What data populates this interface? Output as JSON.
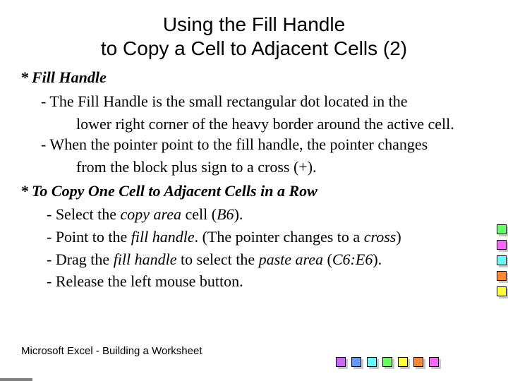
{
  "title": {
    "line1": "Using the Fill Handle",
    "line2": "to Copy a Cell to Adjacent Cells (2)"
  },
  "content": {
    "topic1": {
      "bullet": "*",
      "head": "Fill Handle",
      "sub1a": "- The Fill Handle is the small rectangular dot located in the",
      "sub1b": "lower right corner of the heavy border around the active cell.",
      "sub2a": "- When the pointer point to the fill handle, the pointer changes",
      "sub2b": "from the block plus sign to a cross (+)."
    },
    "topic2": {
      "bullet": "*",
      "head": "To Copy One Cell to Adjacent Cells in a Row",
      "s1_pre": "- Select the ",
      "s1_it": "copy area",
      "s1_post": " cell (",
      "s1_ref": "B6",
      "s1_end": ").",
      "s2_pre": "- Point to the ",
      "s2_it": "fill handle",
      "s2_mid": ". (The pointer changes to a ",
      "s2_it2": "cross",
      "s2_end": ")",
      "s3_pre": "- Drag the ",
      "s3_it": "fill handle",
      "s3_mid": " to select the ",
      "s3_it2": "paste area",
      "s3_post": " (",
      "s3_ref": "C6:E6",
      "s3_end": ").",
      "s4": "- Release the left mouse button."
    }
  },
  "footer": "Microsoft  Excel - Building a Worksheet",
  "colors": {
    "right": [
      "#66ff66",
      "#ff66ff",
      "#66ffff",
      "#ff8833",
      "#ffff33"
    ],
    "bottom": [
      "#cc66ff",
      "#6699ff",
      "#66ffff",
      "#66ff66",
      "#ffff33",
      "#ff8833",
      "#ff66ff"
    ]
  }
}
